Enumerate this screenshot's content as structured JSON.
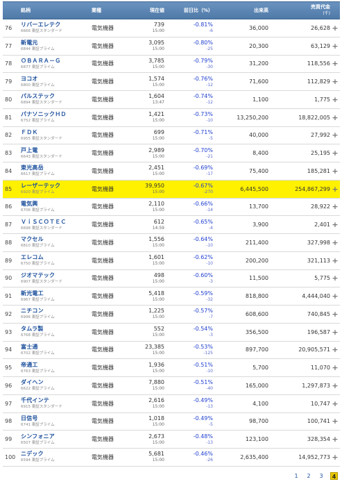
{
  "header": {
    "code": "銘柄",
    "industry": "業種",
    "price": "現在値",
    "change": "前日比（%）",
    "volume": "出来高",
    "value": "売買代金",
    "value_unit": "(千)"
  },
  "rows": [
    {
      "rank": "76",
      "name": "リバーエレテク",
      "code": "6666",
      "market": "東証スタンダード",
      "industry": "電気機器",
      "price": "739",
      "time": "15:00",
      "pct": "-0.81%",
      "chg": "-6",
      "volume": "36,000",
      "value": "26,628"
    },
    {
      "rank": "77",
      "name": "新電元",
      "code": "6844",
      "market": "東証プライム",
      "industry": "電気機器",
      "price": "3,095",
      "time": "15:00",
      "pct": "-0.80%",
      "chg": "-25",
      "volume": "20,300",
      "value": "63,129"
    },
    {
      "rank": "78",
      "name": "ＯＢＡＲＡ－Ｇ",
      "code": "6877",
      "market": "東証プライム",
      "industry": "電気機器",
      "price": "3,785",
      "time": "15:00",
      "pct": "-0.79%",
      "chg": "-30",
      "volume": "31,200",
      "value": "118,556"
    },
    {
      "rank": "79",
      "name": "ヨコオ",
      "code": "6800",
      "market": "東証プライム",
      "industry": "電気機器",
      "price": "1,574",
      "time": "15:00",
      "pct": "-0.76%",
      "chg": "-12",
      "volume": "71,600",
      "value": "112,829"
    },
    {
      "rank": "80",
      "name": "パルステック",
      "code": "6894",
      "market": "東証スタンダード",
      "industry": "電気機器",
      "price": "1,604",
      "time": "13:47",
      "pct": "-0.74%",
      "chg": "-12",
      "volume": "1,100",
      "value": "1,775"
    },
    {
      "rank": "81",
      "name": "パナソニックＨＤ",
      "code": "6752",
      "market": "東証プライム",
      "industry": "電気機器",
      "price": "1,421",
      "time": "15:00",
      "pct": "-0.73%",
      "chg": "-10",
      "volume": "13,250,200",
      "value": "18,822,005"
    },
    {
      "rank": "82",
      "name": "ＦＤＫ",
      "code": "6955",
      "market": "東証スタンダード",
      "industry": "電気機器",
      "price": "699",
      "time": "15:00",
      "pct": "-0.71%",
      "chg": "-5",
      "volume": "40,000",
      "value": "27,992"
    },
    {
      "rank": "83",
      "name": "戸上電",
      "code": "6643",
      "market": "東証スタンダード",
      "industry": "電気機器",
      "price": "2,989",
      "time": "15:00",
      "pct": "-0.70%",
      "chg": "-21",
      "volume": "8,400",
      "value": "25,195"
    },
    {
      "rank": "84",
      "name": "東光高岳",
      "code": "6617",
      "market": "東証プライム",
      "industry": "電気機器",
      "price": "2,451",
      "time": "15:00",
      "pct": "-0.69%",
      "chg": "-17",
      "volume": "75,400",
      "value": "185,281"
    },
    {
      "rank": "85",
      "name": "レーザーテック",
      "code": "6920",
      "market": "東証プライム",
      "industry": "電気機器",
      "price": "39,950",
      "time": "15:00",
      "pct": "-0.67%",
      "chg": "-270",
      "volume": "6,445,500",
      "value": "254,867,299",
      "highlight": true
    },
    {
      "rank": "86",
      "name": "電気興",
      "code": "6706",
      "market": "東証プライム",
      "industry": "電気機器",
      "price": "2,110",
      "time": "15:00",
      "pct": "-0.66%",
      "chg": "-14",
      "volume": "13,700",
      "value": "28,922"
    },
    {
      "rank": "87",
      "name": "ＶｉＳＣＯＴＥＣ",
      "code": "6698",
      "market": "東証スタンダード",
      "industry": "電気機器",
      "price": "612",
      "time": "14:59",
      "pct": "-0.65%",
      "chg": "-4",
      "volume": "3,900",
      "value": "2,401"
    },
    {
      "rank": "88",
      "name": "マクセル",
      "code": "6810",
      "market": "東証プライム",
      "industry": "電気機器",
      "price": "1,556",
      "time": "15:00",
      "pct": "-0.64%",
      "chg": "-10",
      "volume": "211,400",
      "value": "327,998"
    },
    {
      "rank": "89",
      "name": "エレコム",
      "code": "6750",
      "market": "東証プライム",
      "industry": "電気機器",
      "price": "1,601",
      "time": "15:00",
      "pct": "-0.62%",
      "chg": "-10",
      "volume": "200,200",
      "value": "321,113"
    },
    {
      "rank": "90",
      "name": "ジオマテック",
      "code": "6907",
      "market": "東証スタンダード",
      "industry": "電気機器",
      "price": "498",
      "time": "15:00",
      "pct": "-0.60%",
      "chg": "-3",
      "volume": "11,500",
      "value": "5,775"
    },
    {
      "rank": "91",
      "name": "新光電工",
      "code": "6967",
      "market": "東証プライム",
      "industry": "電気機器",
      "price": "5,418",
      "time": "15:00",
      "pct": "-0.59%",
      "chg": "-32",
      "volume": "818,800",
      "value": "4,444,040"
    },
    {
      "rank": "92",
      "name": "ニチコン",
      "code": "6996",
      "market": "東証プライム",
      "industry": "電気機器",
      "price": "1,225",
      "time": "15:00",
      "pct": "-0.57%",
      "chg": "-7",
      "volume": "608,600",
      "value": "740,845"
    },
    {
      "rank": "93",
      "name": "タムラ製",
      "code": "6768",
      "market": "東証プライム",
      "industry": "電気機器",
      "price": "552",
      "time": "15:00",
      "pct": "-0.54%",
      "chg": "-3",
      "volume": "356,500",
      "value": "196,587"
    },
    {
      "rank": "94",
      "name": "富士通",
      "code": "6702",
      "market": "東証プライム",
      "industry": "電気機器",
      "price": "23,385",
      "time": "15:00",
      "pct": "-0.53%",
      "chg": "-125",
      "volume": "897,700",
      "value": "20,905,571"
    },
    {
      "rank": "95",
      "name": "帝通工",
      "code": "6763",
      "market": "東証プライム",
      "industry": "電気機器",
      "price": "1,936",
      "time": "15:00",
      "pct": "-0.51%",
      "chg": "-10",
      "volume": "5,700",
      "value": "11,070"
    },
    {
      "rank": "96",
      "name": "ダイヘン",
      "code": "6622",
      "market": "東証プライム",
      "industry": "電気機器",
      "price": "7,880",
      "time": "15:00",
      "pct": "-0.51%",
      "chg": "-40",
      "volume": "165,000",
      "value": "1,297,873"
    },
    {
      "rank": "97",
      "name": "千代インテ",
      "code": "6915",
      "market": "東証スタンダード",
      "industry": "電気機器",
      "price": "2,616",
      "time": "15:00",
      "pct": "-0.49%",
      "chg": "-13",
      "volume": "4,100",
      "value": "10,747"
    },
    {
      "rank": "98",
      "name": "日信号",
      "code": "6741",
      "market": "東証プライム",
      "industry": "電気機器",
      "price": "1,018",
      "time": "15:00",
      "pct": "-0.49%",
      "chg": "-5",
      "volume": "98,700",
      "value": "100,741"
    },
    {
      "rank": "99",
      "name": "シンフォニア",
      "code": "6507",
      "market": "東証プライム",
      "industry": "電気機器",
      "price": "2,673",
      "time": "15:00",
      "pct": "-0.48%",
      "chg": "-13",
      "volume": "123,100",
      "value": "328,354"
    },
    {
      "rank": "100",
      "name": "ニデック",
      "code": "6594",
      "market": "東証プライム",
      "industry": "電気機器",
      "price": "5,681",
      "time": "15:00",
      "pct": "-0.46%",
      "chg": "-26",
      "volume": "2,635,400",
      "value": "14,952,773"
    }
  ],
  "pagination": {
    "pages": [
      "1",
      "2",
      "3",
      "4"
    ],
    "current": "4"
  },
  "add_icon": "plus-icon",
  "colors": {
    "header_bg": "#5a84b3",
    "highlight": "#fff100",
    "link": "#1b4f9c",
    "negative": "#1f3fd0"
  }
}
